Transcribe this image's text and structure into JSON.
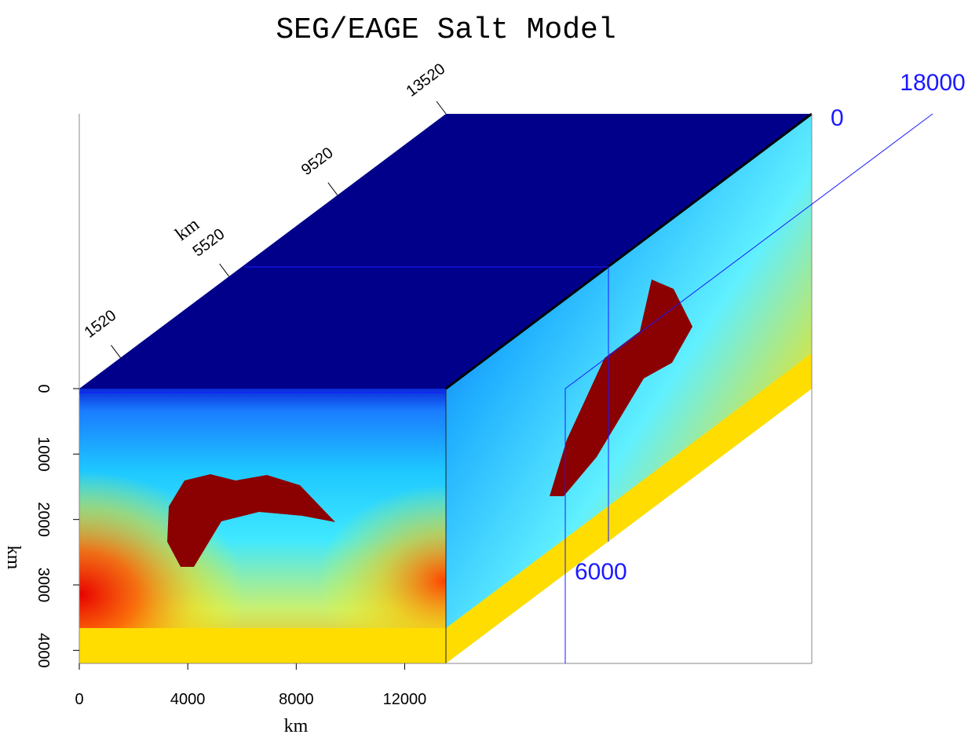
{
  "chart_data": {
    "type": "cube",
    "title": "SEG/EAGE Salt Model",
    "x_label": "km",
    "y_label": "km",
    "z_label": "km",
    "xlim": [
      0,
      13520
    ],
    "xticks": [
      0,
      4000,
      8000,
      12000
    ],
    "ylim": [
      0,
      13520
    ],
    "yticks": [
      1520,
      5520,
      9520,
      13520
    ],
    "zlim": [
      0,
      4200
    ],
    "zticks": [
      0,
      1000,
      2000,
      3000,
      4000
    ],
    "annotations": [
      "18000",
      "0",
      "6000"
    ]
  }
}
